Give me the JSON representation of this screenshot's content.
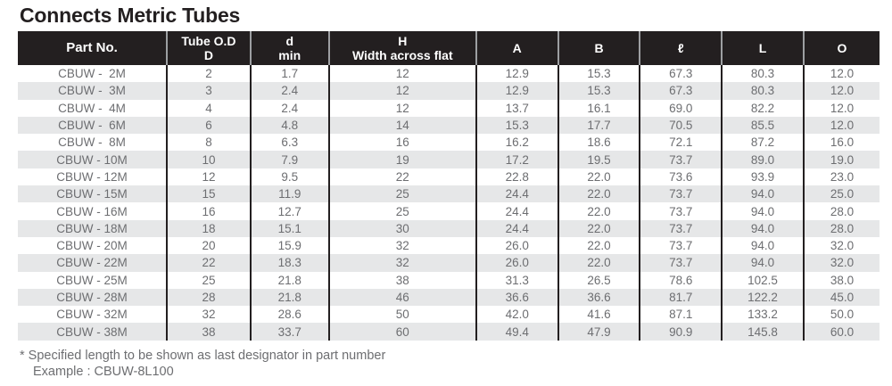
{
  "title": "Connects Metric Tubes",
  "colors": {
    "header_bg": "#231f20",
    "header_text": "#ffffff",
    "body_text": "#6d6e71",
    "stripe": "#e6e7e8",
    "column_line": "#231f20",
    "header_separator": "#9d9fa2"
  },
  "table": {
    "headers": [
      "Part No.",
      "Tube O.D\nD",
      "d\nmin",
      "H\nWidth across flat",
      "A",
      "B",
      "ℓ",
      "L",
      "O"
    ],
    "rows": [
      [
        "CBUW -  2M",
        "2",
        "1.7",
        "12",
        "12.9",
        "15.3",
        "67.3",
        "80.3",
        "12.0"
      ],
      [
        "CBUW -  3M",
        "3",
        "2.4",
        "12",
        "12.9",
        "15.3",
        "67.3",
        "80.3",
        "12.0"
      ],
      [
        "CBUW -  4M",
        "4",
        "2.4",
        "12",
        "13.7",
        "16.1",
        "69.0",
        "82.2",
        "12.0"
      ],
      [
        "CBUW -  6M",
        "6",
        "4.8",
        "14",
        "15.3",
        "17.7",
        "70.5",
        "85.5",
        "12.0"
      ],
      [
        "CBUW -  8M",
        "8",
        "6.3",
        "16",
        "16.2",
        "18.6",
        "72.1",
        "87.2",
        "16.0"
      ],
      [
        "CBUW - 10M",
        "10",
        "7.9",
        "19",
        "17.2",
        "19.5",
        "73.7",
        "89.0",
        "19.0"
      ],
      [
        "CBUW - 12M",
        "12",
        "9.5",
        "22",
        "22.8",
        "22.0",
        "73.6",
        "93.9",
        "23.0"
      ],
      [
        "CBUW - 15M",
        "15",
        "11.9",
        "25",
        "24.4",
        "22.0",
        "73.7",
        "94.0",
        "25.0"
      ],
      [
        "CBUW - 16M",
        "16",
        "12.7",
        "25",
        "24.4",
        "22.0",
        "73.7",
        "94.0",
        "28.0"
      ],
      [
        "CBUW - 18M",
        "18",
        "15.1",
        "30",
        "24.4",
        "22.0",
        "73.7",
        "94.0",
        "28.0"
      ],
      [
        "CBUW - 20M",
        "20",
        "15.9",
        "32",
        "26.0",
        "22.0",
        "73.7",
        "94.0",
        "32.0"
      ],
      [
        "CBUW - 22M",
        "22",
        "18.3",
        "32",
        "26.0",
        "22.0",
        "73.7",
        "94.0",
        "32.0"
      ],
      [
        "CBUW - 25M",
        "25",
        "21.8",
        "38",
        "31.3",
        "26.5",
        "78.6",
        "102.5",
        "38.0"
      ],
      [
        "CBUW - 28M",
        "28",
        "21.8",
        "46",
        "36.6",
        "36.6",
        "81.7",
        "122.2",
        "45.0"
      ],
      [
        "CBUW - 32M",
        "32",
        "28.6",
        "50",
        "42.0",
        "41.6",
        "87.1",
        "133.2",
        "50.0"
      ],
      [
        "CBUW - 38M",
        "38",
        "33.7",
        "60",
        "49.4",
        "47.9",
        "90.9",
        "145.8",
        "60.0"
      ]
    ]
  },
  "footnote": {
    "line1": "* Specified length to be shown as last designator in part number",
    "line2": "Example : CBUW-8L100"
  }
}
